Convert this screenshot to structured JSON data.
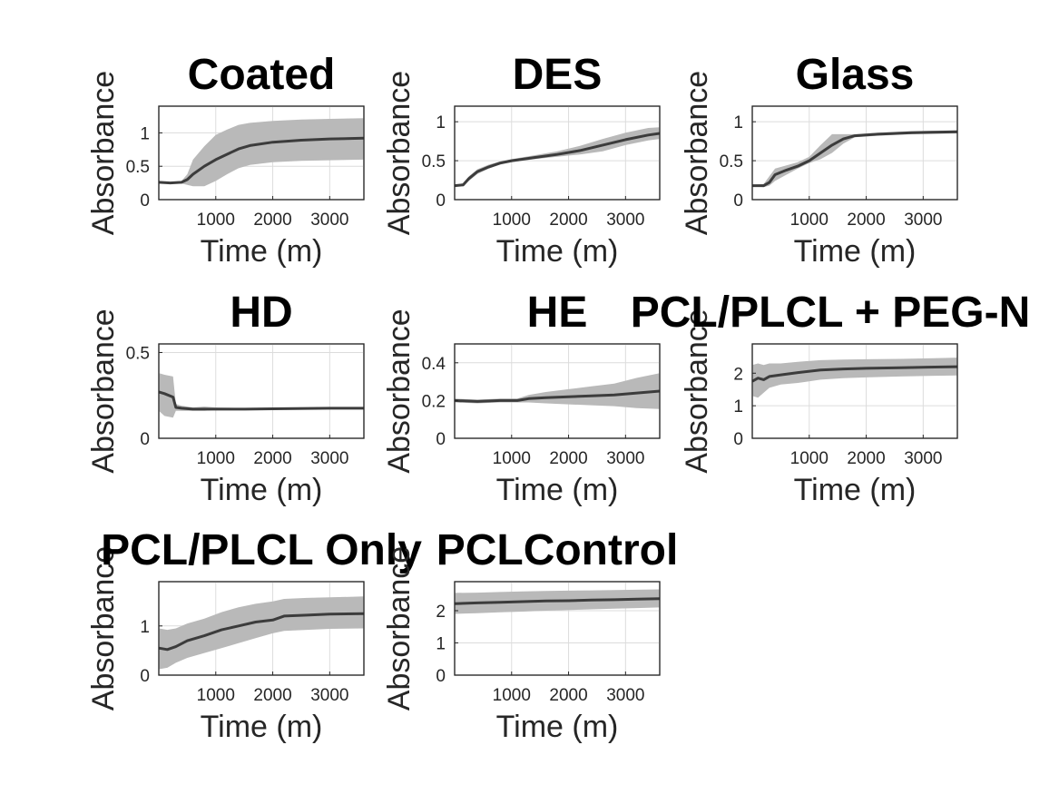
{
  "style": {
    "band_color": "#b9b9b9",
    "line_color": "#3c3c3c",
    "grid": true
  },
  "chart_data": [
    {
      "type": "line",
      "title": "Coated",
      "xlabel": "Time (m)",
      "ylabel": "Absorbance",
      "xlim": [
        0,
        3600
      ],
      "ylim": [
        0,
        1.4
      ],
      "xticks": [
        1000,
        2000,
        3000
      ],
      "yticks": [
        0,
        0.5,
        1
      ],
      "yticklabels": [
        "0",
        "0.5",
        "1"
      ],
      "series": [
        {
          "x": [
            0,
            200,
            400,
            500,
            600,
            800,
            1000,
            1200,
            1400,
            1600,
            2000,
            2500,
            3000,
            3600
          ],
          "values": [
            0.26,
            0.25,
            0.26,
            0.3,
            0.38,
            0.5,
            0.6,
            0.68,
            0.76,
            0.81,
            0.86,
            0.89,
            0.91,
            0.92
          ],
          "lower": [
            0.25,
            0.24,
            0.24,
            0.22,
            0.2,
            0.2,
            0.28,
            0.38,
            0.47,
            0.52,
            0.56,
            0.58,
            0.59,
            0.6
          ],
          "upper": [
            0.27,
            0.26,
            0.28,
            0.38,
            0.6,
            0.8,
            0.97,
            1.05,
            1.12,
            1.15,
            1.18,
            1.2,
            1.21,
            1.22
          ]
        }
      ]
    },
    {
      "type": "line",
      "title": "DES",
      "xlabel": "Time (m)",
      "ylabel": "Absorbance",
      "xlim": [
        0,
        3600
      ],
      "ylim": [
        0,
        1.2
      ],
      "xticks": [
        1000,
        2000,
        3000
      ],
      "yticks": [
        0,
        0.5,
        1
      ],
      "yticklabels": [
        "0",
        "0.5",
        "1"
      ],
      "series": [
        {
          "x": [
            0,
            150,
            250,
            400,
            600,
            800,
            1000,
            1400,
            1800,
            2200,
            2600,
            3000,
            3400,
            3600
          ],
          "values": [
            0.18,
            0.19,
            0.27,
            0.36,
            0.42,
            0.47,
            0.5,
            0.54,
            0.58,
            0.63,
            0.7,
            0.77,
            0.83,
            0.85
          ],
          "lower": [
            0.17,
            0.17,
            0.24,
            0.33,
            0.4,
            0.45,
            0.48,
            0.52,
            0.55,
            0.58,
            0.62,
            0.7,
            0.76,
            0.78
          ],
          "upper": [
            0.19,
            0.21,
            0.3,
            0.39,
            0.45,
            0.49,
            0.52,
            0.57,
            0.62,
            0.69,
            0.78,
            0.86,
            0.92,
            0.93
          ]
        }
      ]
    },
    {
      "type": "line",
      "title": "Glass",
      "xlabel": "Time (m)",
      "ylabel": "Absorbance",
      "xlim": [
        0,
        3600
      ],
      "ylim": [
        0,
        1.2
      ],
      "xticks": [
        1000,
        2000,
        3000
      ],
      "yticks": [
        0,
        0.5,
        1
      ],
      "yticklabels": [
        "0",
        "0.5",
        "1"
      ],
      "series": [
        {
          "x": [
            0,
            200,
            300,
            400,
            600,
            800,
            1000,
            1200,
            1400,
            1600,
            1800,
            2200,
            2800,
            3600
          ],
          "values": [
            0.18,
            0.18,
            0.22,
            0.32,
            0.38,
            0.43,
            0.5,
            0.6,
            0.7,
            0.78,
            0.82,
            0.84,
            0.86,
            0.87
          ],
          "lower": [
            0.17,
            0.16,
            0.18,
            0.24,
            0.32,
            0.4,
            0.47,
            0.52,
            0.6,
            0.72,
            0.8,
            0.82,
            0.84,
            0.85
          ],
          "upper": [
            0.19,
            0.2,
            0.3,
            0.4,
            0.44,
            0.48,
            0.55,
            0.7,
            0.84,
            0.84,
            0.84,
            0.86,
            0.88,
            0.89
          ]
        }
      ]
    },
    {
      "type": "line",
      "title": "HD",
      "xlabel": "Time (m)",
      "ylabel": "Absorbance",
      "xlim": [
        0,
        3600
      ],
      "ylim": [
        0,
        0.55
      ],
      "xticks": [
        1000,
        2000,
        3000
      ],
      "yticks": [
        0,
        0.5
      ],
      "yticklabels": [
        "0",
        "0.5"
      ],
      "series": [
        {
          "x": [
            0,
            100,
            250,
            300,
            400,
            600,
            800,
            1000,
            1500,
            2000,
            3000,
            3600
          ],
          "values": [
            0.27,
            0.26,
            0.24,
            0.18,
            0.175,
            0.17,
            0.17,
            0.17,
            0.17,
            0.172,
            0.175,
            0.175
          ],
          "lower": [
            0.16,
            0.13,
            0.12,
            0.16,
            0.16,
            0.16,
            0.16,
            0.165,
            0.166,
            0.168,
            0.17,
            0.17
          ],
          "upper": [
            0.38,
            0.37,
            0.36,
            0.2,
            0.19,
            0.18,
            0.185,
            0.18,
            0.176,
            0.177,
            0.18,
            0.18
          ]
        }
      ]
    },
    {
      "type": "line",
      "title": "HE",
      "xlabel": "Time (m)",
      "ylabel": "Absorbance",
      "xlim": [
        0,
        3600
      ],
      "ylim": [
        0,
        0.5
      ],
      "xticks": [
        1000,
        2000,
        3000
      ],
      "yticks": [
        0,
        0.2,
        0.4
      ],
      "yticklabels": [
        "0",
        "0.2",
        "0.4"
      ],
      "series": [
        {
          "x": [
            0,
            400,
            800,
            1100,
            1200,
            1300,
            1600,
            2000,
            2400,
            2800,
            3200,
            3600
          ],
          "values": [
            0.2,
            0.195,
            0.2,
            0.2,
            0.205,
            0.21,
            0.215,
            0.22,
            0.225,
            0.23,
            0.24,
            0.25
          ],
          "lower": [
            0.19,
            0.185,
            0.19,
            0.19,
            0.19,
            0.19,
            0.185,
            0.18,
            0.175,
            0.17,
            0.16,
            0.155
          ],
          "upper": [
            0.21,
            0.205,
            0.21,
            0.21,
            0.22,
            0.23,
            0.245,
            0.26,
            0.275,
            0.29,
            0.32,
            0.345
          ]
        }
      ]
    },
    {
      "type": "line",
      "title": "PCL/PLCL + PEG-N",
      "xlabel": "Time (m)",
      "ylabel": "Absorbance",
      "xlim": [
        0,
        3600
      ],
      "ylim": [
        0,
        2.9
      ],
      "xticks": [
        1000,
        2000,
        3000
      ],
      "yticks": [
        0,
        1,
        2
      ],
      "yticklabels": [
        "0",
        "1",
        "2"
      ],
      "series": [
        {
          "x": [
            0,
            100,
            200,
            300,
            500,
            800,
            1200,
            1600,
            2000,
            2600,
            3200,
            3600
          ],
          "values": [
            1.75,
            1.85,
            1.8,
            1.9,
            1.95,
            2.02,
            2.1,
            2.13,
            2.15,
            2.17,
            2.19,
            2.2
          ],
          "lower": [
            1.3,
            1.25,
            1.4,
            1.55,
            1.65,
            1.7,
            1.8,
            1.85,
            1.87,
            1.9,
            1.92,
            1.93
          ],
          "upper": [
            2.25,
            2.3,
            2.25,
            2.3,
            2.3,
            2.35,
            2.4,
            2.42,
            2.43,
            2.44,
            2.46,
            2.48
          ]
        }
      ]
    },
    {
      "type": "line",
      "title": "PCL/PLCL Only",
      "xlabel": "Time (m)",
      "ylabel": "Absorbance",
      "xlim": [
        0,
        3600
      ],
      "ylim": [
        0,
        1.9
      ],
      "xticks": [
        1000,
        2000,
        3000
      ],
      "yticks": [
        0,
        1
      ],
      "yticklabels": [
        "0",
        "1"
      ],
      "series": [
        {
          "x": [
            0,
            150,
            300,
            500,
            800,
            1100,
            1400,
            1700,
            2000,
            2200,
            2600,
            3000,
            3600
          ],
          "values": [
            0.55,
            0.52,
            0.58,
            0.7,
            0.8,
            0.92,
            1.0,
            1.08,
            1.12,
            1.2,
            1.22,
            1.24,
            1.25
          ],
          "lower": [
            0.12,
            0.15,
            0.25,
            0.35,
            0.45,
            0.55,
            0.65,
            0.75,
            0.85,
            0.9,
            0.92,
            0.94,
            0.95
          ],
          "upper": [
            0.95,
            0.92,
            0.95,
            1.05,
            1.15,
            1.28,
            1.38,
            1.45,
            1.5,
            1.55,
            1.57,
            1.58,
            1.6
          ]
        }
      ]
    },
    {
      "type": "line",
      "title": "PCLControl",
      "xlabel": "Time (m)",
      "ylabel": "Absorbance",
      "xlim": [
        0,
        3600
      ],
      "ylim": [
        0,
        2.9
      ],
      "xticks": [
        1000,
        2000,
        3000
      ],
      "yticks": [
        0,
        1,
        2
      ],
      "yticklabels": [
        "0",
        "1",
        "2"
      ],
      "series": [
        {
          "x": [
            0,
            400,
            800,
            1200,
            1600,
            2000,
            2400,
            2800,
            3200,
            3600
          ],
          "values": [
            2.22,
            2.24,
            2.26,
            2.28,
            2.3,
            2.31,
            2.33,
            2.34,
            2.36,
            2.37
          ],
          "lower": [
            1.9,
            1.92,
            1.95,
            1.97,
            2.0,
            2.02,
            2.04,
            2.06,
            2.08,
            2.1
          ],
          "upper": [
            2.55,
            2.56,
            2.58,
            2.6,
            2.61,
            2.62,
            2.63,
            2.64,
            2.65,
            2.66
          ]
        }
      ]
    }
  ]
}
